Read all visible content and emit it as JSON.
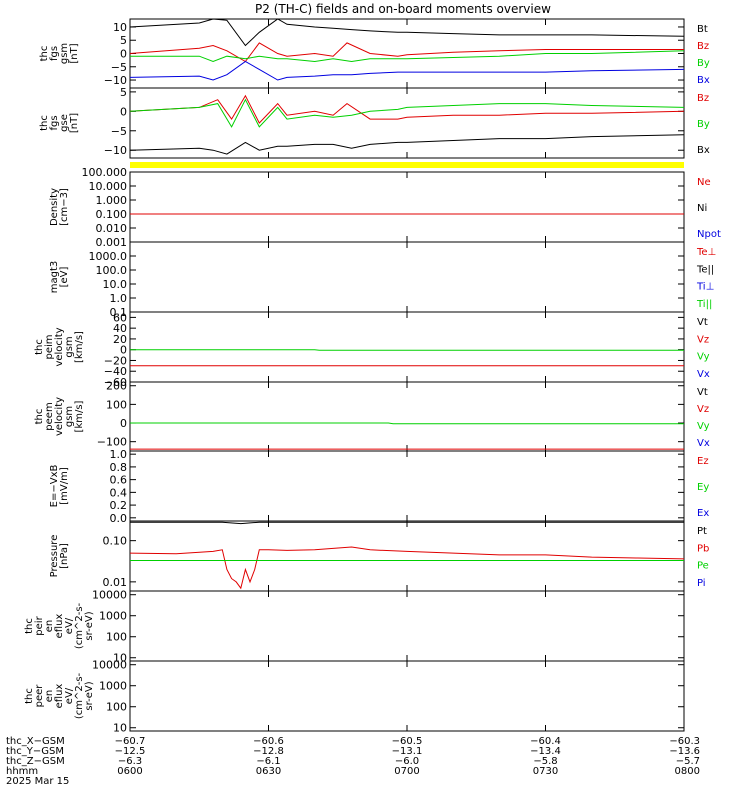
{
  "title": "P2 (TH-C) fields and on-board moments overview",
  "colors": {
    "black": "#000000",
    "red": "#e00000",
    "green": "#00d000",
    "blue": "#0000e0",
    "yellow": "#ffff00",
    "axis": "#000000"
  },
  "chart_data": [
    {
      "type": "line",
      "name": "panel-fgs-gsm",
      "ylabel": [
        "thc",
        "fgs",
        "gsm",
        "[nT]"
      ],
      "ylim": [
        -13,
        13
      ],
      "yticks": [
        -10,
        -5,
        0,
        5,
        10
      ],
      "ytick_labels": [
        "−10",
        "−5",
        "0",
        "5",
        "10"
      ],
      "legend": [
        {
          "label": "Bt",
          "color": "#000000"
        },
        {
          "label": "Bz",
          "color": "#e00000"
        },
        {
          "label": "By",
          "color": "#00d000"
        },
        {
          "label": "Bx",
          "color": "#0000e0"
        }
      ],
      "series": [
        {
          "name": "Bt",
          "color": "#000000",
          "x": [
            0,
            15,
            18,
            21,
            25,
            28,
            32,
            34,
            40,
            44,
            48,
            52,
            58,
            60,
            70,
            80,
            90,
            100,
            120
          ],
          "y": [
            10,
            11.5,
            13,
            12.5,
            3,
            8,
            13,
            11,
            10,
            9.5,
            9,
            8.5,
            8,
            8,
            7.5,
            7,
            7,
            7,
            6.5
          ]
        },
        {
          "name": "Bz",
          "color": "#e00000",
          "x": [
            0,
            15,
            18,
            21,
            25,
            28,
            32,
            34,
            40,
            44,
            47,
            52,
            58,
            60,
            70,
            80,
            90,
            100,
            120
          ],
          "y": [
            0,
            2,
            3,
            1,
            -3,
            4,
            0,
            -1,
            0,
            -1,
            4,
            0,
            -1,
            -0.5,
            0.5,
            1,
            1.5,
            1.5,
            1.5
          ]
        },
        {
          "name": "By",
          "color": "#00d000",
          "x": [
            0,
            15,
            18,
            21,
            25,
            28,
            32,
            34,
            40,
            44,
            48,
            52,
            58,
            60,
            70,
            80,
            90,
            100,
            120
          ],
          "y": [
            -1,
            -1,
            -3,
            -1,
            -2,
            -1,
            -2,
            -2,
            -3,
            -2,
            -3,
            -2,
            -2,
            -2,
            -1.5,
            -1,
            0,
            0,
            1
          ]
        },
        {
          "name": "Bx",
          "color": "#0000e0",
          "x": [
            0,
            15,
            18,
            21,
            25,
            28,
            32,
            34,
            40,
            44,
            48,
            52,
            58,
            60,
            70,
            80,
            90,
            100,
            120
          ],
          "y": [
            -9,
            -8.5,
            -10,
            -8,
            -3,
            -6,
            -10,
            -9,
            -8.5,
            -8,
            -8,
            -7.5,
            -7,
            -7,
            -7,
            -7,
            -7,
            -6.5,
            -6
          ]
        }
      ]
    },
    {
      "type": "line",
      "name": "panel-fgs-gse",
      "ylabel": [
        "thc",
        "fgs",
        "gse",
        "[nT]"
      ],
      "ylim": [
        -12,
        6
      ],
      "yticks": [
        -10,
        -5,
        0,
        5
      ],
      "ytick_labels": [
        "−10",
        "−5",
        "0",
        "5"
      ],
      "legend": [
        {
          "label": "Bz",
          "color": "#e00000"
        },
        {
          "label": "By",
          "color": "#00d000"
        },
        {
          "label": "Bx",
          "color": "#000000"
        }
      ],
      "series": [
        {
          "name": "Bz",
          "color": "#e00000",
          "x": [
            0,
            15,
            19,
            22,
            25,
            28,
            32,
            34,
            40,
            44,
            47,
            52,
            58,
            60,
            70,
            80,
            90,
            100,
            120
          ],
          "y": [
            0,
            1,
            3,
            -2,
            4,
            -3,
            2,
            -1,
            0,
            -1,
            2,
            -2,
            -2,
            -1.5,
            -1,
            -1,
            -0.5,
            -0.5,
            0
          ]
        },
        {
          "name": "By",
          "color": "#00d000",
          "x": [
            0,
            15,
            19,
            22,
            25,
            28,
            32,
            34,
            40,
            44,
            48,
            52,
            58,
            60,
            70,
            80,
            90,
            100,
            120
          ],
          "y": [
            0,
            1,
            2,
            -4,
            3,
            -4,
            1,
            -2,
            -1,
            -1.5,
            -1,
            0,
            0.5,
            1,
            1.5,
            2,
            2,
            1.5,
            1
          ]
        },
        {
          "name": "Bx",
          "color": "#000000",
          "x": [
            0,
            15,
            18,
            21,
            25,
            28,
            32,
            34,
            40,
            44,
            48,
            52,
            58,
            60,
            70,
            80,
            90,
            100,
            120
          ],
          "y": [
            -10,
            -9.5,
            -10,
            -11,
            -8,
            -10,
            -9,
            -9,
            -8.5,
            -8.5,
            -9.5,
            -8.5,
            -8,
            -8,
            -7.5,
            -7,
            -7,
            -6.5,
            -6
          ]
        }
      ]
    },
    {
      "type": "line",
      "name": "panel-density",
      "log": true,
      "ylabel": [
        "Density",
        "[cm−3]"
      ],
      "ylim": [
        0.001,
        100
      ],
      "yticks": [
        0.001,
        0.01,
        0.1,
        1,
        10,
        100
      ],
      "ytick_labels": [
        "0.001",
        "0.010",
        "0.100",
        "1.000",
        "10.000",
        "100.000"
      ],
      "legend": [
        {
          "label": "Ne",
          "color": "#e00000"
        },
        {
          "label": "Ni",
          "color": "#000000"
        },
        {
          "label": "Npot",
          "color": "#0000e0"
        }
      ],
      "series": [
        {
          "name": "Ne",
          "color": "#e00000",
          "x": [
            0,
            120
          ],
          "y": [
            0.1,
            0.1
          ]
        }
      ]
    },
    {
      "type": "line",
      "name": "panel-temperature",
      "log": true,
      "ylabel": [
        "magt3",
        "[eV]"
      ],
      "ylim": [
        0.1,
        10000
      ],
      "yticks": [
        0.1,
        1,
        10,
        100,
        1000
      ],
      "ytick_labels": [
        "0.1",
        "1.0",
        "10.0",
        "100.0",
        "1000.0"
      ],
      "legend": [
        {
          "label": "Te⊥",
          "color": "#e00000"
        },
        {
          "label": "Te||",
          "color": "#000000"
        },
        {
          "label": "Ti⊥",
          "color": "#0000e0"
        },
        {
          "label": "Ti||",
          "color": "#00d000"
        }
      ],
      "series": []
    },
    {
      "type": "line",
      "name": "panel-peim-velocity",
      "ylabel": [
        "thc",
        "peim",
        "velocity",
        "gsm",
        "[km/s]"
      ],
      "ylim": [
        -60,
        70
      ],
      "yticks": [
        -60,
        -40,
        -20,
        0,
        20,
        40,
        60
      ],
      "ytick_labels": [
        "−60",
        "−40",
        "−20",
        "0",
        "20",
        "40",
        "60"
      ],
      "legend": [
        {
          "label": "Vt",
          "color": "#000000"
        },
        {
          "label": "Vz",
          "color": "#e00000"
        },
        {
          "label": "Vy",
          "color": "#00d000"
        },
        {
          "label": "Vx",
          "color": "#0000e0"
        }
      ],
      "series": [
        {
          "name": "Vy",
          "color": "#00d000",
          "x": [
            0,
            40,
            41,
            120
          ],
          "y": [
            0,
            0,
            -1,
            -1
          ]
        },
        {
          "name": "Vz",
          "color": "#e00000",
          "x": [
            0,
            120
          ],
          "y": [
            -30,
            -30
          ]
        }
      ]
    },
    {
      "type": "line",
      "name": "panel-peem-velocity",
      "ylabel": [
        "thc",
        "peem",
        "velocity",
        "gsm",
        "[km/s]"
      ],
      "ylim": [
        -150,
        220
      ],
      "yticks": [
        -100,
        0,
        100,
        200
      ],
      "ytick_labels": [
        "−100",
        "0",
        "100",
        "200"
      ],
      "legend": [
        {
          "label": "Vt",
          "color": "#000000"
        },
        {
          "label": "Vz",
          "color": "#e00000"
        },
        {
          "label": "Vy",
          "color": "#00d000"
        },
        {
          "label": "Vx",
          "color": "#0000e0"
        }
      ],
      "series": [
        {
          "name": "Vy",
          "color": "#00d000",
          "x": [
            0,
            56,
            57,
            120
          ],
          "y": [
            0,
            0,
            -4,
            -4
          ]
        },
        {
          "name": "Vz",
          "color": "#e00000",
          "x": [
            0,
            120
          ],
          "y": [
            -140,
            -140
          ]
        }
      ]
    },
    {
      "type": "line",
      "name": "panel-efield",
      "ylabel": [
        "E=−VxB",
        "[mV/m]"
      ],
      "ylim": [
        -0.05,
        1.05
      ],
      "yticks": [
        0.0,
        0.2,
        0.4,
        0.6,
        0.8,
        1.0
      ],
      "ytick_labels": [
        "0.0",
        "0.2",
        "0.4",
        "0.6",
        "0.8",
        "1.0"
      ],
      "legend": [
        {
          "label": "Ez",
          "color": "#e00000"
        },
        {
          "label": "Ey",
          "color": "#00d000"
        },
        {
          "label": "Ex",
          "color": "#0000e0"
        }
      ],
      "series": []
    },
    {
      "type": "line",
      "name": "panel-pressure",
      "log": true,
      "ylabel": [
        "Pressure",
        "[nPa]"
      ],
      "ylim": [
        0.006,
        0.3
      ],
      "yticks": [
        0.01,
        0.1
      ],
      "ytick_labels": [
        "0.01",
        "0.10"
      ],
      "legend": [
        {
          "label": "Pt",
          "color": "#000000"
        },
        {
          "label": "Pb",
          "color": "#e00000"
        },
        {
          "label": "Pe",
          "color": "#00d000"
        },
        {
          "label": "Pi",
          "color": "#0000e0"
        }
      ],
      "series": [
        {
          "name": "Pt",
          "color": "#000000",
          "x": [
            0,
            20,
            24,
            28,
            32,
            40,
            60,
            90,
            120
          ],
          "y": [
            0.28,
            0.28,
            0.26,
            0.28,
            0.28,
            0.28,
            0.28,
            0.28,
            0.28
          ]
        },
        {
          "name": "Pb",
          "color": "#e00000",
          "x": [
            0,
            10,
            18,
            20,
            21,
            22,
            23,
            24,
            25,
            26,
            27,
            28,
            30,
            34,
            40,
            44,
            48,
            52,
            60,
            70,
            80,
            90,
            100,
            110,
            120
          ],
          "y": [
            0.05,
            0.048,
            0.055,
            0.06,
            0.02,
            0.012,
            0.01,
            0.007,
            0.02,
            0.01,
            0.02,
            0.06,
            0.06,
            0.058,
            0.06,
            0.065,
            0.07,
            0.06,
            0.055,
            0.05,
            0.045,
            0.045,
            0.04,
            0.038,
            0.036
          ]
        },
        {
          "name": "Pe",
          "color": "#00d000",
          "x": [
            0,
            120
          ],
          "y": [
            0.033,
            0.033
          ]
        }
      ]
    },
    {
      "type": "line",
      "name": "panel-peir-eflux",
      "log": true,
      "ylabel": [
        "thc",
        "peir",
        "en",
        "eflux",
        "eV/",
        "(cm^2-s-",
        "sr-eV)"
      ],
      "ylim": [
        7,
        15000
      ],
      "yticks": [
        10,
        100,
        1000,
        10000
      ],
      "ytick_labels": [
        "10",
        "100",
        "1000",
        "10000"
      ],
      "legend": [],
      "series": []
    },
    {
      "type": "line",
      "name": "panel-peer-eflux",
      "log": true,
      "ylabel": [
        "thc",
        "peer",
        "en",
        "eflux",
        "eV/",
        "(cm^2-s-",
        "sr-eV)"
      ],
      "ylim": [
        7,
        15000
      ],
      "yticks": [
        10,
        100,
        1000,
        10000
      ],
      "ytick_labels": [
        "10",
        "100",
        "1000",
        "10000"
      ],
      "legend": [],
      "series": []
    }
  ],
  "xaxis": {
    "xlim": [
      0,
      120
    ],
    "ticks": [
      0,
      30,
      60,
      90,
      120
    ],
    "row_labels": [
      "thc_X−GSM",
      "thc_Y−GSM",
      "thc_Z−GSM",
      "hhmm",
      "2025 Mar 15"
    ],
    "rows": [
      [
        "−60.7",
        "−60.6",
        "−60.5",
        "−60.4",
        "−60.3"
      ],
      [
        "−12.5",
        "−12.8",
        "−13.1",
        "−13.4",
        "−13.6"
      ],
      [
        "−6.3",
        "−6.1",
        "−6.0",
        "−5.8",
        "−5.7"
      ],
      [
        "0600",
        "0630",
        "0700",
        "0730",
        "0800"
      ]
    ]
  }
}
